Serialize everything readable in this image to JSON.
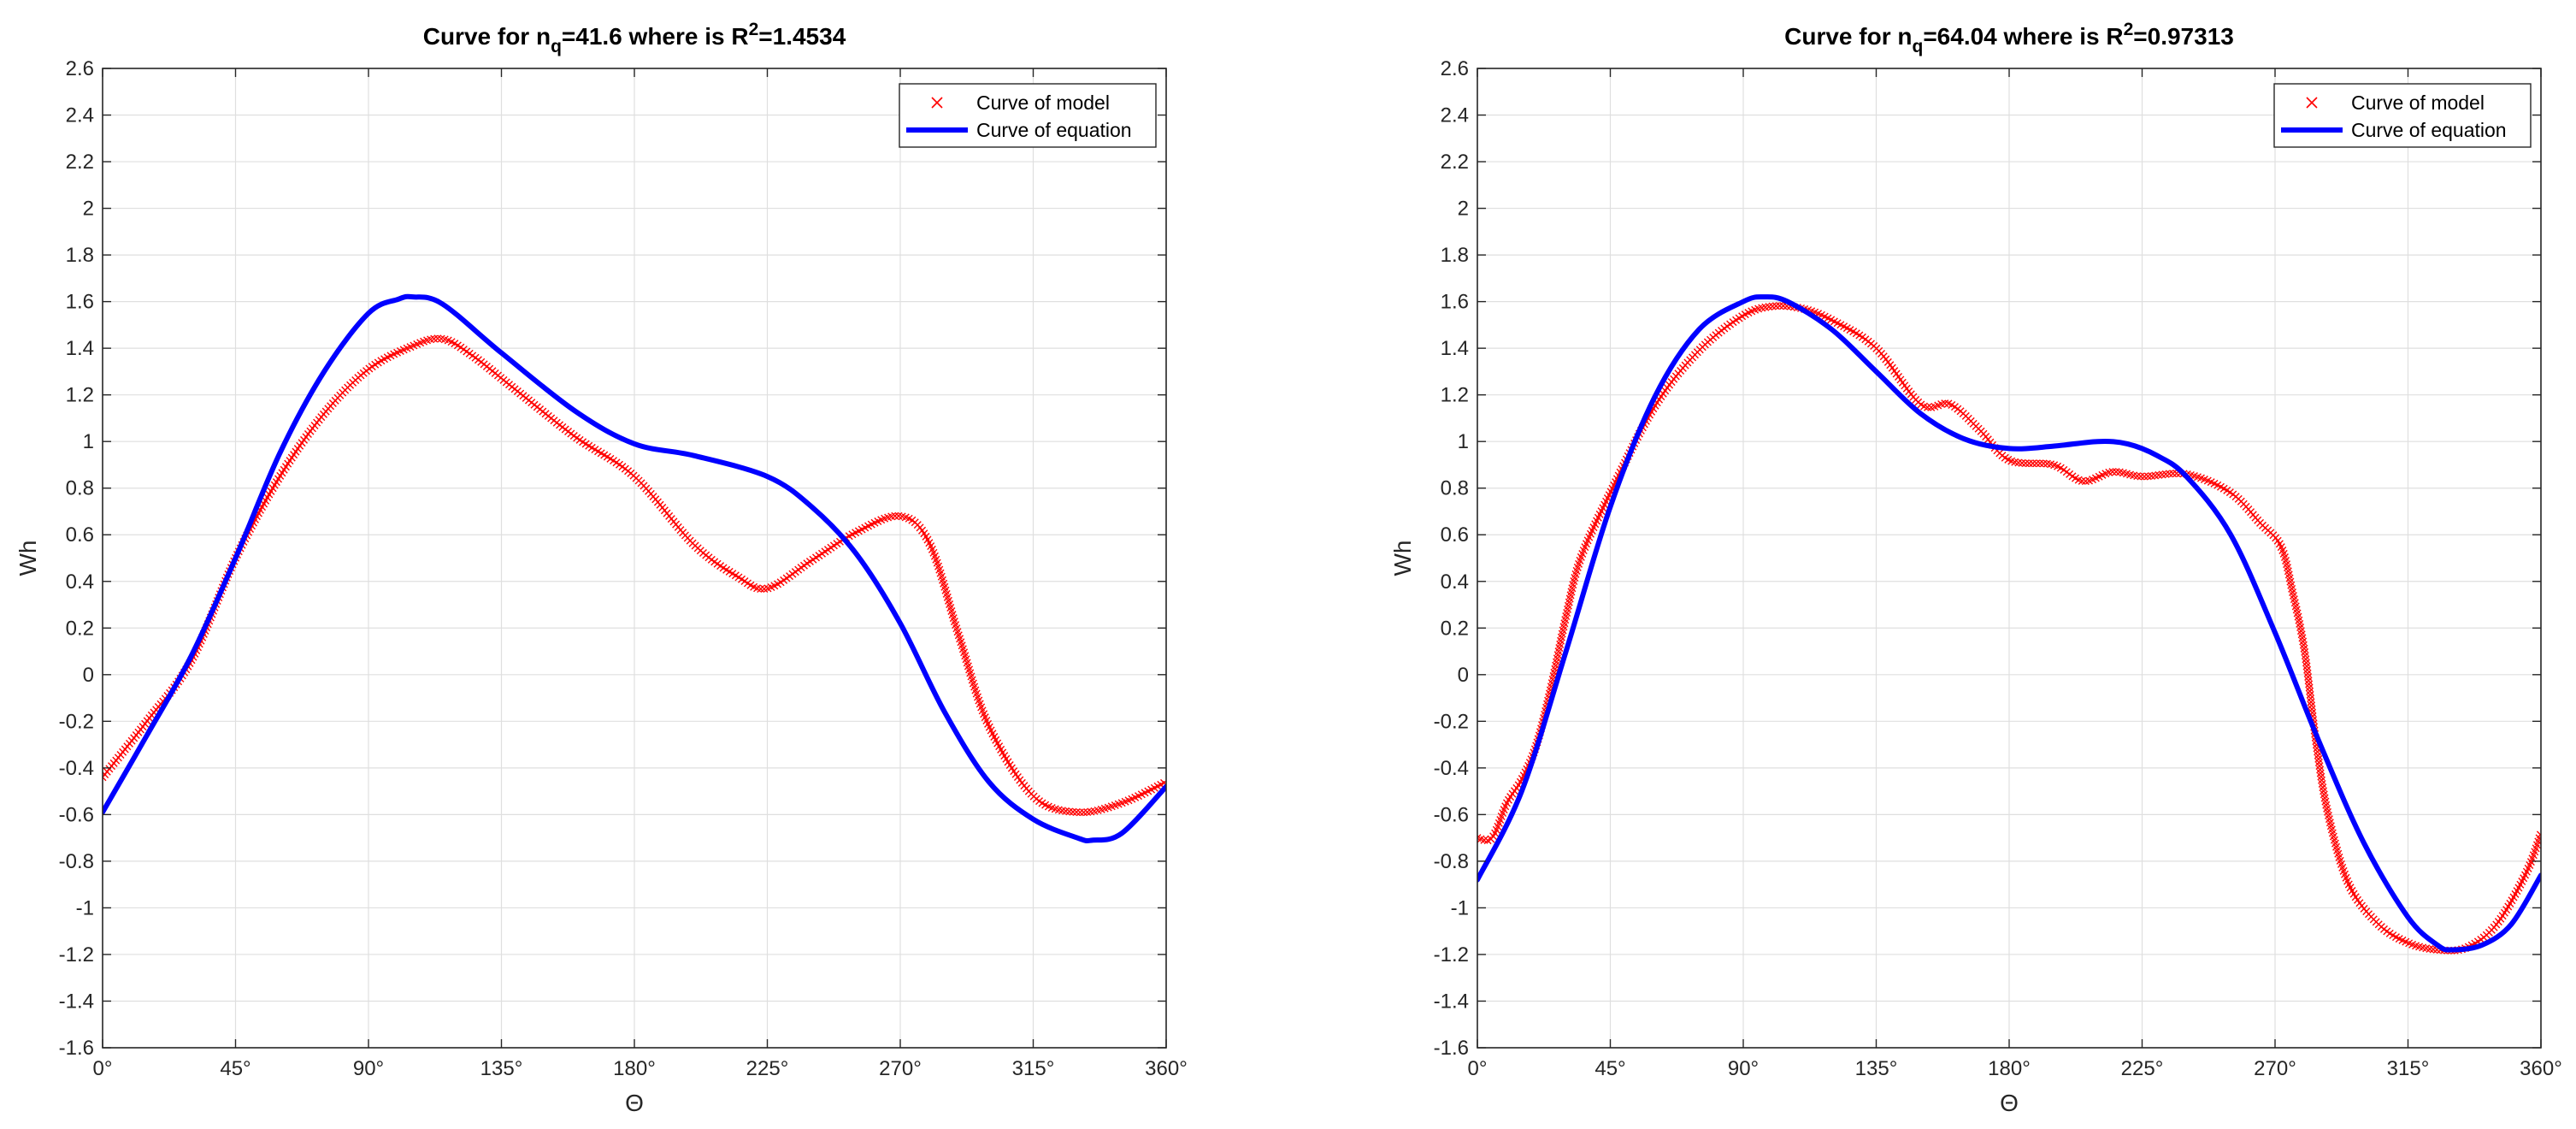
{
  "colors": {
    "model": "#ff0000",
    "equation": "#0000ff",
    "grid": "#dfdfdf",
    "axis": "#262626"
  },
  "chart_data": [
    {
      "type": "line",
      "title": {
        "prefix": "Curve for n",
        "subscript": "q",
        "middle": "=41.6 where is R",
        "superscript": "2",
        "suffix": "=1.4534"
      },
      "xlabel": "Θ",
      "ylabel": "Wh",
      "xlim": [
        0,
        360
      ],
      "ylim": [
        -1.6,
        2.6
      ],
      "grid": true,
      "legend_position": "top-right",
      "xticks": [
        0,
        45,
        90,
        135,
        180,
        225,
        270,
        315,
        360
      ],
      "xtick_labels": [
        "0°",
        "45°",
        "90°",
        "135°",
        "180°",
        "225°",
        "270°",
        "315°",
        "360°"
      ],
      "yticks": [
        2.6,
        2.4,
        2.2,
        2,
        1.8,
        1.6,
        1.4,
        1.2,
        1,
        0.8,
        0.6,
        0.4,
        0.2,
        0,
        -0.2,
        -0.4,
        -0.6,
        -0.8,
        -1,
        -1.2,
        -1.4,
        -1.6
      ],
      "ytick_labels": [
        "2.6",
        "2.4",
        "2.2",
        "2",
        "1.8",
        "1.6",
        "1.4",
        "1.2",
        "1",
        "0.8",
        "0.6",
        "0.4",
        "0.2",
        "0",
        "-0.2",
        "-0.4",
        "-0.6",
        "-0.8",
        "-1",
        "-1.2",
        "-1.4",
        "-1.6"
      ],
      "series": [
        {
          "name": "Curve of model",
          "style": "markers-x",
          "x": [
            0,
            15,
            30,
            45,
            60,
            75,
            90,
            105,
            115,
            125,
            140,
            160,
            180,
            200,
            215,
            225,
            240,
            255,
            270,
            280,
            290,
            300,
            315,
            330,
            345,
            360
          ],
          "y": [
            -0.44,
            -0.2,
            0.06,
            0.5,
            0.85,
            1.12,
            1.31,
            1.41,
            1.44,
            1.37,
            1.22,
            1.02,
            0.85,
            0.56,
            0.42,
            0.37,
            0.49,
            0.61,
            0.68,
            0.56,
            0.16,
            -0.22,
            -0.52,
            -0.59,
            -0.55,
            -0.46
          ]
        },
        {
          "name": "Curve of equation",
          "style": "line",
          "x": [
            0,
            15,
            30,
            45,
            60,
            75,
            90,
            100,
            105,
            115,
            135,
            160,
            180,
            200,
            225,
            240,
            255,
            270,
            285,
            300,
            315,
            330,
            335,
            345,
            360
          ],
          "y": [
            -0.59,
            -0.26,
            0.08,
            0.5,
            0.95,
            1.3,
            1.55,
            1.61,
            1.62,
            1.59,
            1.38,
            1.13,
            0.99,
            0.94,
            0.85,
            0.72,
            0.52,
            0.22,
            -0.16,
            -0.46,
            -0.62,
            -0.7,
            -0.71,
            -0.68,
            -0.48
          ]
        }
      ]
    },
    {
      "type": "line",
      "title": {
        "prefix": "Curve for n",
        "subscript": "q",
        "middle": "=64.04 where is R",
        "superscript": "2",
        "suffix": "=0.97313"
      },
      "xlabel": "Θ",
      "ylabel": "Wh",
      "xlim": [
        0,
        360
      ],
      "ylim": [
        -1.6,
        2.6
      ],
      "grid": true,
      "legend_position": "top-right",
      "xticks": [
        0,
        45,
        90,
        135,
        180,
        225,
        270,
        315,
        360
      ],
      "xtick_labels": [
        "0°",
        "45°",
        "90°",
        "135°",
        "180°",
        "225°",
        "270°",
        "315°",
        "360°"
      ],
      "yticks": [
        2.6,
        2.4,
        2.2,
        2,
        1.8,
        1.6,
        1.4,
        1.2,
        1,
        0.8,
        0.6,
        0.4,
        0.2,
        0,
        -0.2,
        -0.4,
        -0.6,
        -0.8,
        -1,
        -1.2,
        -1.4,
        -1.6
      ],
      "ytick_labels": [
        "2.6",
        "2.4",
        "2.2",
        "2",
        "1.8",
        "1.6",
        "1.4",
        "1.2",
        "1",
        "0.8",
        "0.6",
        "0.4",
        "0.2",
        "0",
        "-0.2",
        "-0.4",
        "-0.6",
        "-0.8",
        "-1",
        "-1.2",
        "-1.4",
        "-1.6"
      ],
      "series": [
        {
          "name": "Curve of model",
          "style": "markers-x",
          "x": [
            0,
            5,
            10,
            15,
            20,
            25,
            30,
            35,
            45,
            60,
            75,
            90,
            100,
            110,
            120,
            135,
            150,
            160,
            170,
            180,
            195,
            205,
            215,
            225,
            240,
            255,
            265,
            272,
            276,
            280,
            284,
            288,
            295,
            305,
            315,
            325,
            335,
            345,
            355,
            360
          ],
          "y": [
            -0.7,
            -0.7,
            -0.55,
            -0.45,
            -0.3,
            -0.05,
            0.25,
            0.5,
            0.78,
            1.15,
            1.39,
            1.54,
            1.58,
            1.57,
            1.52,
            1.4,
            1.16,
            1.16,
            1.05,
            0.92,
            0.9,
            0.83,
            0.87,
            0.85,
            0.86,
            0.78,
            0.65,
            0.55,
            0.35,
            0.1,
            -0.3,
            -0.6,
            -0.9,
            -1.07,
            -1.15,
            -1.18,
            -1.17,
            -1.07,
            -0.85,
            -0.68
          ]
        },
        {
          "name": "Curve of equation",
          "style": "line",
          "x": [
            0,
            15,
            30,
            45,
            60,
            75,
            90,
            97,
            105,
            120,
            135,
            150,
            165,
            180,
            195,
            210,
            220,
            230,
            240,
            255,
            270,
            285,
            300,
            315,
            325,
            330,
            340,
            350,
            360
          ],
          "y": [
            -0.88,
            -0.5,
            0.1,
            0.72,
            1.19,
            1.48,
            1.6,
            1.62,
            1.6,
            1.48,
            1.3,
            1.12,
            1.01,
            0.97,
            0.98,
            1.0,
            0.99,
            0.94,
            0.85,
            0.6,
            0.18,
            -0.29,
            -0.72,
            -1.04,
            -1.16,
            -1.18,
            -1.16,
            -1.07,
            -0.86
          ]
        }
      ]
    }
  ]
}
